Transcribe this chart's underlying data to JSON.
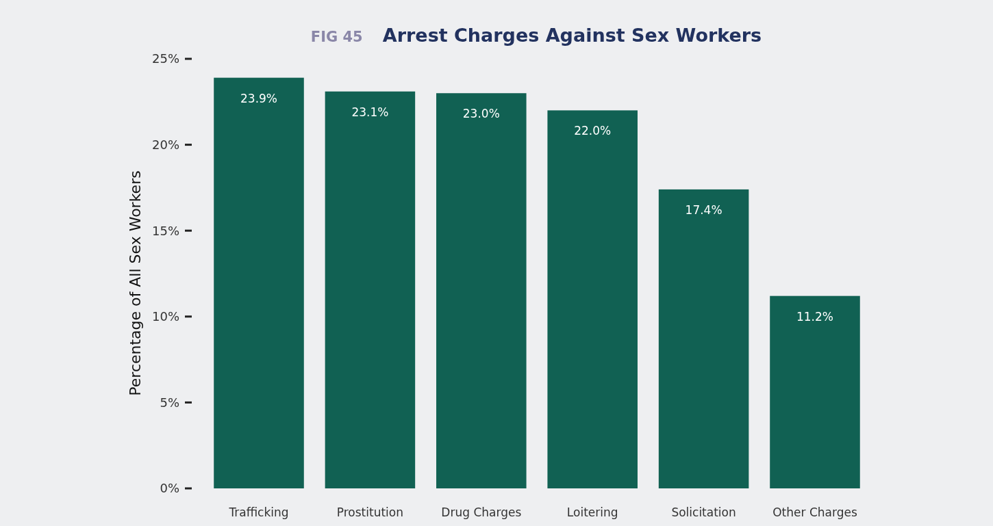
{
  "chart_data": {
    "type": "bar",
    "title": "Arrest Charges Against Sex Workers",
    "subtitle": "FIG 45",
    "ylabel": "Percentage of All Sex Workers",
    "categories": [
      "Trafficking",
      "Prostitution",
      "Drug Charges",
      "Loitering",
      "Solicitation",
      "Other Charges"
    ],
    "values": [
      23.9,
      23.1,
      23.0,
      22.0,
      17.4,
      11.2
    ],
    "value_labels": [
      "23.9%",
      "23.1%",
      "23.0%",
      "22.0%",
      "17.4%",
      "11.2%"
    ],
    "color": "#116153",
    "ylim": [
      0,
      25
    ],
    "yticks": [
      {
        "value": 0,
        "label": "0%"
      },
      {
        "value": 5,
        "label": "5%"
      },
      {
        "value": 10,
        "label": "10%"
      },
      {
        "value": 15,
        "label": "15%"
      },
      {
        "value": 20,
        "label": "20%"
      },
      {
        "value": 25,
        "label": "25%"
      }
    ],
    "grid": false
  }
}
